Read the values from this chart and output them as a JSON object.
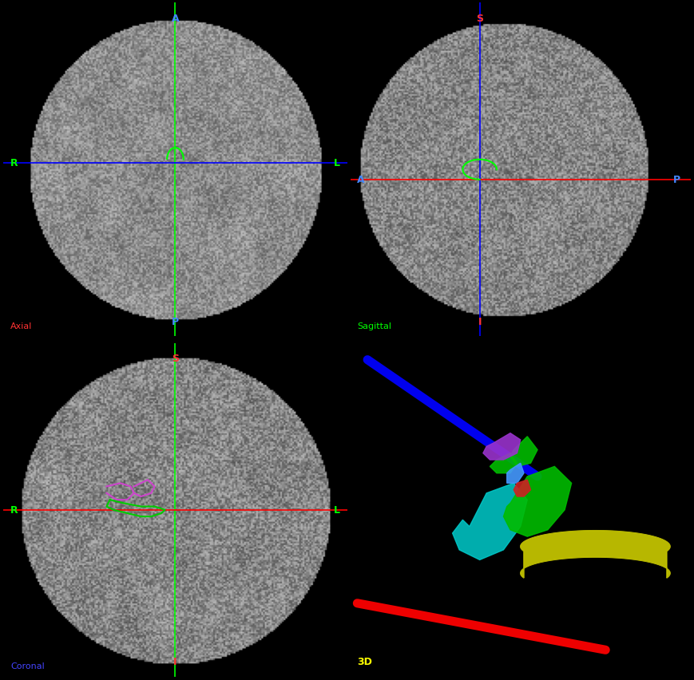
{
  "panel_border_colors": {
    "top_left": "#ff0000",
    "top_right": "#00ff00",
    "bottom_left": "#0000ff",
    "bottom_right": "#ffff00"
  },
  "panel_labels": {
    "top_left": "Axial",
    "top_right": "Sagittal",
    "bottom_left": "Coronal",
    "bottom_right": "3D"
  },
  "label_colors": {
    "top_left": "#ff3333",
    "top_right": "#00ff00",
    "bottom_left": "#4444ff",
    "bottom_right": "#ffff00"
  },
  "crosshair_color_green": "#00ff00",
  "crosshair_color_blue": "#0000ff",
  "crosshair_color_red": "#ff0000",
  "axis_label_colors": {
    "green": "#00ff00",
    "blue": "#4488ff",
    "red": "#ff3333"
  },
  "bg_3d": "#4a4a4a",
  "bg_mri": "#222222"
}
